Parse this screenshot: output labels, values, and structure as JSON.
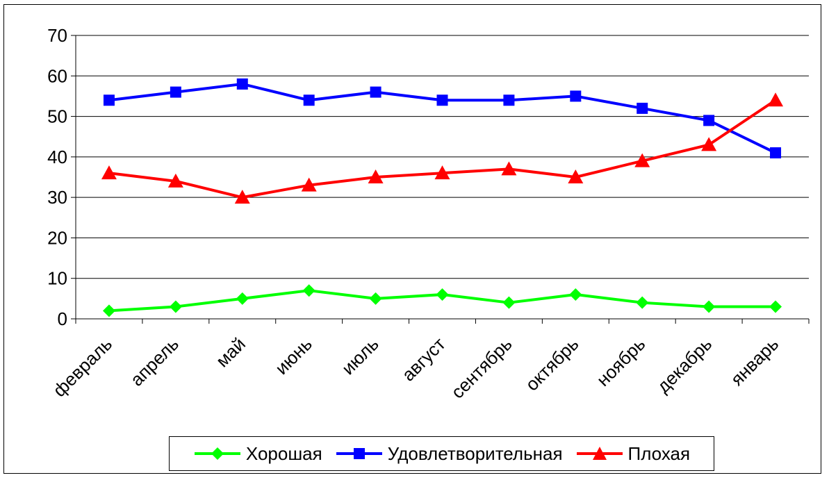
{
  "chart_data": {
    "type": "line",
    "categories": [
      "февраль",
      "апрель",
      "май",
      "июнь",
      "июль",
      "август",
      "сентябрь",
      "октябрь",
      "ноябрь",
      "декабрь",
      "январь"
    ],
    "series": [
      {
        "name": "Хорошая",
        "color": "#00ff00",
        "marker": "diamond",
        "values": [
          2,
          3,
          5,
          7,
          5,
          6,
          4,
          6,
          4,
          3,
          3
        ]
      },
      {
        "name": "Удовлетворительная",
        "color": "#0000ff",
        "marker": "square",
        "values": [
          54,
          56,
          58,
          54,
          56,
          54,
          54,
          55,
          52,
          49,
          41
        ]
      },
      {
        "name": "Плохая",
        "color": "#ff0000",
        "marker": "triangle",
        "values": [
          36,
          34,
          30,
          33,
          35,
          36,
          37,
          35,
          39,
          43,
          54
        ]
      }
    ],
    "yticks": [
      "0",
      "10",
      "20",
      "30",
      "40",
      "50",
      "60",
      "70"
    ],
    "ylim": [
      0,
      70
    ],
    "grid": true,
    "legend_position": "bottom"
  }
}
